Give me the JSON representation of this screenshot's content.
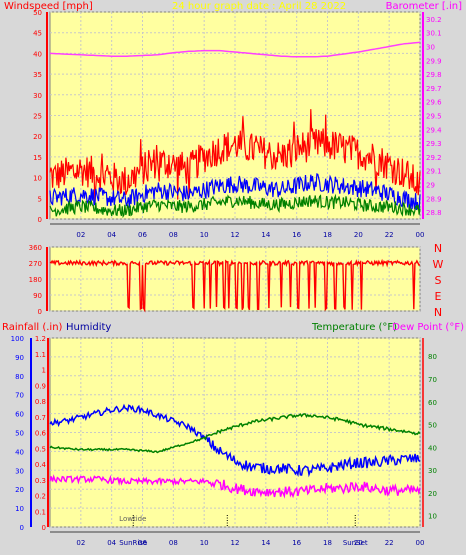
{
  "chart_data": [
    {
      "type": "line",
      "panel": "wind_baro",
      "title": "24 hour graph date : April 28 2022",
      "left_label": "Windspeed [mph]",
      "right_label": "Barometer [.in]",
      "x_ticks": [
        "02",
        "04",
        "06",
        "08",
        "10",
        "12",
        "14",
        "16",
        "18",
        "20",
        "22",
        "00"
      ],
      "left_ticks": [
        "0",
        "5",
        "10",
        "15",
        "20",
        "25",
        "30",
        "35",
        "40",
        "45",
        "50"
      ],
      "right_ticks": [
        "28.8",
        "28.9",
        "29",
        "29.1",
        "29.2",
        "29.3",
        "29.4",
        "29.5",
        "29.6",
        "29.7",
        "29.8",
        "29.9",
        "30",
        "30.1",
        "30.2"
      ],
      "ylim_left": [
        0,
        50
      ],
      "ylim_right": [
        28.75,
        30.25
      ],
      "x": [
        0,
        1,
        2,
        3,
        4,
        5,
        6,
        7,
        8,
        9,
        10,
        11,
        12,
        13,
        14,
        15,
        16,
        17,
        18,
        19,
        20,
        21,
        22,
        23,
        24
      ],
      "series": [
        {
          "name": "Barometer",
          "axis": "right",
          "color": "#ff40ff",
          "values": [
            29.95,
            29.945,
            29.94,
            29.935,
            29.93,
            29.93,
            29.935,
            29.94,
            29.955,
            29.965,
            29.97,
            29.97,
            29.96,
            29.95,
            29.94,
            29.93,
            29.925,
            29.925,
            29.93,
            29.945,
            29.96,
            29.98,
            30.0,
            30.02,
            30.03
          ]
        },
        {
          "name": "Wind gust",
          "axis": "left",
          "color": "#ff0000",
          "values": [
            10,
            11,
            12,
            11,
            10,
            9,
            12,
            14,
            13,
            12,
            15,
            17,
            18,
            17,
            16,
            15,
            17,
            18,
            18,
            17,
            16,
            15,
            13,
            11,
            8
          ]
        },
        {
          "name": "Wind speed",
          "axis": "left",
          "color": "#0000ff",
          "values": [
            5,
            5.5,
            6,
            5.5,
            5,
            4.5,
            6,
            7,
            6.5,
            6,
            7,
            8,
            8.5,
            8,
            7.5,
            7,
            8,
            9,
            8.5,
            8,
            7.5,
            7,
            6,
            5,
            4
          ]
        },
        {
          "name": "Wind average",
          "axis": "left",
          "color": "#008000",
          "values": [
            2,
            2.5,
            3,
            2.5,
            2,
            2,
            3,
            3.5,
            3,
            3,
            3.5,
            4,
            4.5,
            4,
            3.5,
            3.5,
            4,
            4.5,
            4,
            4,
            3.5,
            3,
            3,
            2.5,
            2
          ]
        }
      ]
    },
    {
      "type": "line",
      "panel": "wind_direction",
      "left_ticks": [
        "0",
        "90",
        "180",
        "270",
        "360"
      ],
      "ylim": [
        0,
        360
      ],
      "compass_labels": [
        "N",
        "W",
        "S",
        "E",
        "N"
      ],
      "series": [
        {
          "name": "Wind direction",
          "color": "#ff0000",
          "baseline": 270,
          "dropouts_hours": [
            5.1,
            5.9,
            6.1,
            9.3,
            10.0,
            10.4,
            10.8,
            11.3,
            11.6,
            12.1,
            12.5,
            12.9,
            13.5,
            14.2,
            15.0,
            15.6,
            16.1,
            16.8,
            17.2,
            17.9,
            18.5,
            19.1,
            19.6,
            20.2,
            23.6
          ]
        }
      ]
    },
    {
      "type": "line",
      "panel": "temperature_humidity",
      "labels": {
        "rainfall": "Rainfall (.in)",
        "humidity": "Humidity",
        "temperature": "Temperature (°F)",
        "dewpoint": "Dew Point (°F)"
      },
      "humidity_ticks": [
        "0",
        "10",
        "20",
        "30",
        "40",
        "50",
        "60",
        "70",
        "80",
        "90",
        "100"
      ],
      "rain_ticks": [
        "0",
        "0.1",
        "0.2",
        "0.3",
        "0.4",
        "0.5",
        "0.6",
        "0.7",
        "0.8",
        "0.9",
        "1",
        "1.1",
        "1.2"
      ],
      "temp_ticks": [
        "10",
        "20",
        "30",
        "40",
        "50",
        "60",
        "70",
        "80"
      ],
      "x_ticks": [
        "02",
        "04",
        "06",
        "08",
        "10",
        "12",
        "14",
        "16",
        "18",
        "20",
        "22",
        "00"
      ],
      "ylim_humidity": [
        0,
        100
      ],
      "ylim_temp": [
        5,
        88
      ],
      "annotations": [
        "Lowtide",
        "SunRise",
        "SunSet"
      ],
      "x": [
        0,
        1,
        2,
        3,
        4,
        5,
        6,
        7,
        8,
        9,
        10,
        11,
        12,
        13,
        14,
        15,
        16,
        17,
        18,
        19,
        20,
        21,
        22,
        23,
        24
      ],
      "series": [
        {
          "name": "Humidity",
          "axis": "humidity",
          "color": "#0000ff",
          "values": [
            55,
            56,
            58,
            60,
            62,
            63,
            62,
            59,
            56,
            53,
            47,
            40,
            35,
            32,
            31,
            31,
            30,
            30,
            31,
            33,
            34,
            34,
            35,
            36,
            36
          ]
        },
        {
          "name": "Temperature",
          "axis": "temp",
          "color": "#008000",
          "values": [
            40,
            39.5,
            39,
            39,
            39,
            39,
            38.5,
            38,
            40,
            42,
            44,
            47,
            49,
            51,
            52,
            53,
            54,
            54,
            53,
            52,
            50,
            49,
            48,
            47,
            46
          ]
        },
        {
          "name": "Dew Point",
          "axis": "temp",
          "color": "#ff00ff",
          "values": [
            26,
            26,
            26,
            26,
            25.5,
            25,
            25,
            25,
            25,
            25,
            25,
            24,
            22,
            21,
            20.5,
            20.5,
            20.5,
            21,
            22,
            22,
            23,
            22,
            21,
            21,
            21
          ]
        }
      ]
    }
  ]
}
